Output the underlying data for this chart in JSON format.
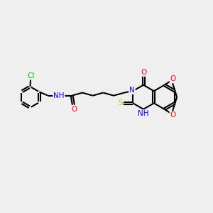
{
  "background_color": "#efefef",
  "atom_colors": {
    "C": "#000000",
    "H": "#808080",
    "N": "#0000ff",
    "O": "#ff0000",
    "S": "#cccc00",
    "Cl": "#00bb00"
  },
  "bond_color": "#000000",
  "bond_width": 1.5,
  "figsize": [
    3.0,
    3.0
  ],
  "dpi": 100
}
